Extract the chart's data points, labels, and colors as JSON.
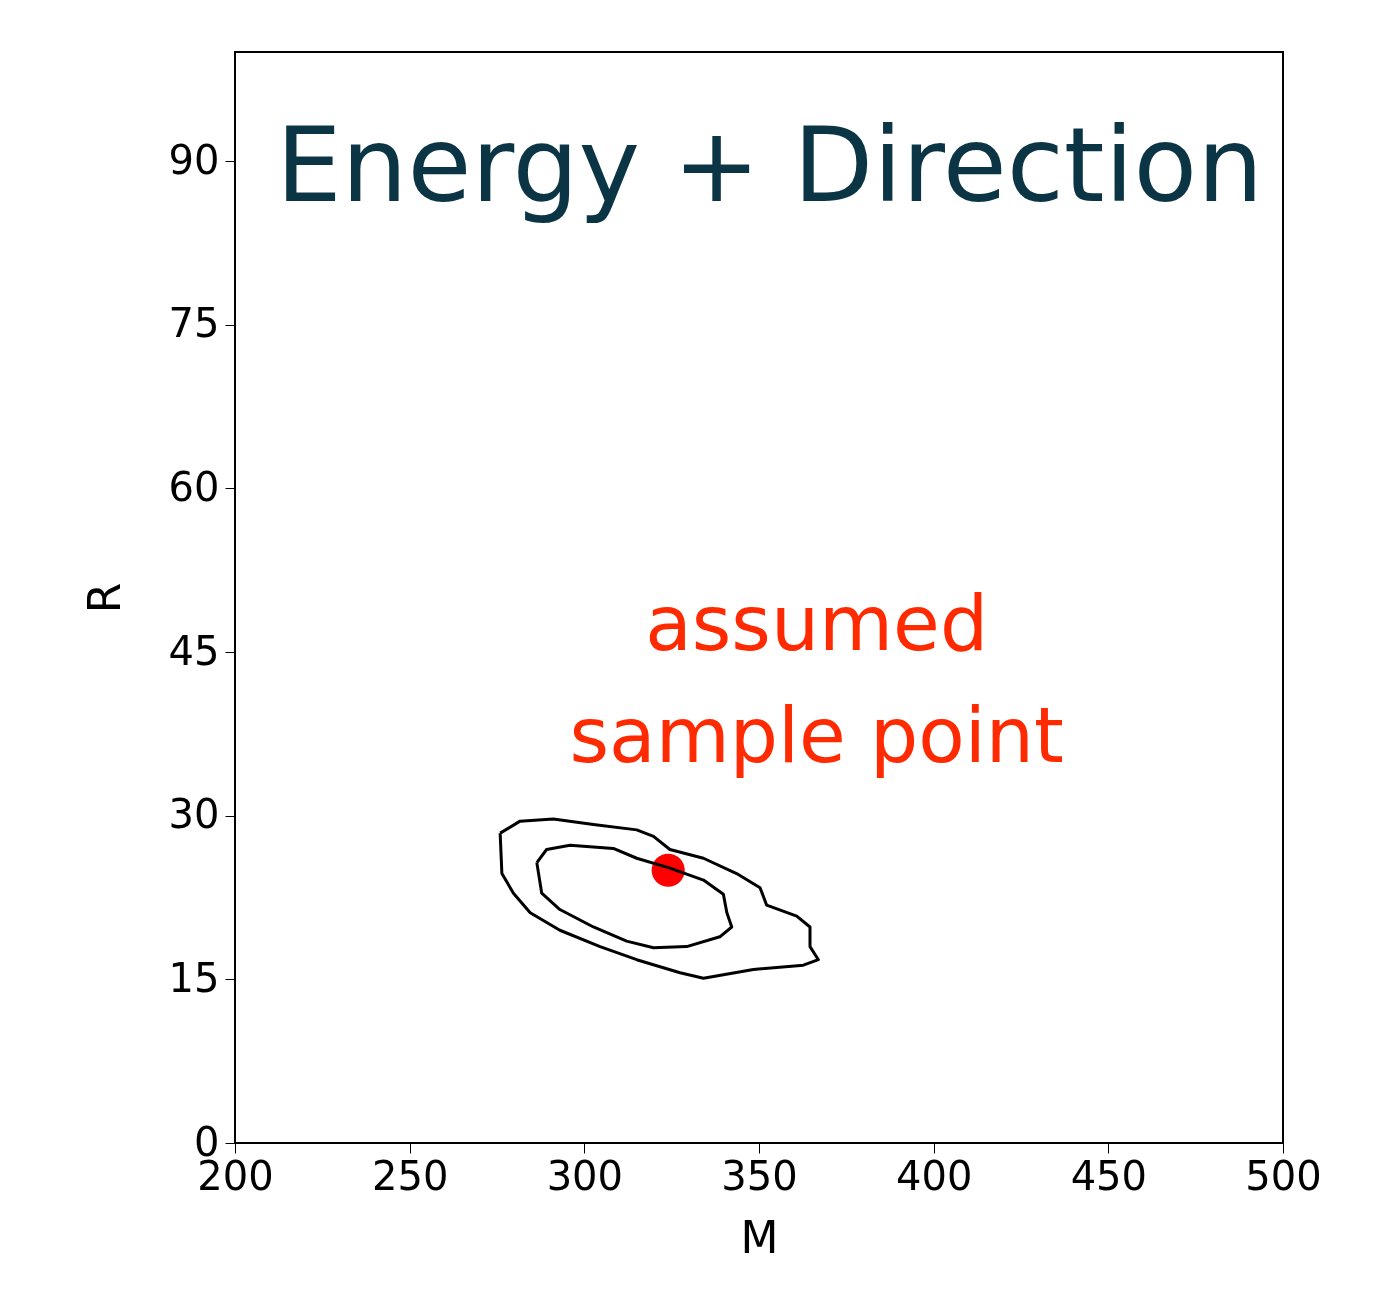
{
  "chart_data": {
    "type": "scatter",
    "title": "Energy + Direction",
    "xlabel": "M",
    "ylabel": "R",
    "annotations": [
      "assumed sample point"
    ],
    "xlim": [
      200,
      500
    ],
    "xticks": [
      200,
      250,
      300,
      350,
      400,
      450,
      500
    ],
    "ylim": [
      0,
      100
    ],
    "yticks": [
      0,
      15,
      30,
      45,
      60,
      75,
      90
    ],
    "grid": false,
    "series": [
      {
        "color": "#ff0000",
        "marker": "circle",
        "x": [
          324
        ],
        "values": [
          25
        ]
      }
    ]
  }
}
